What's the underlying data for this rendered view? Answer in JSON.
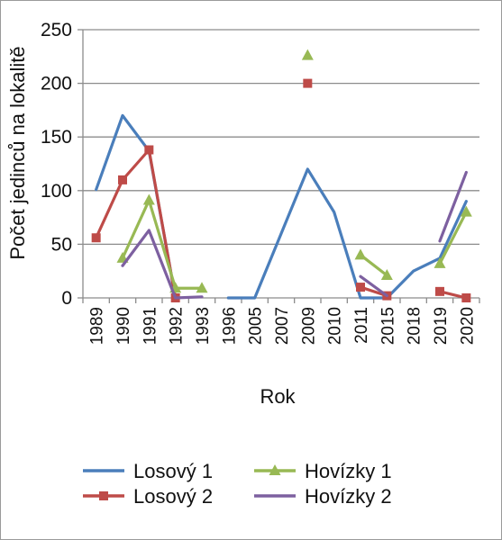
{
  "chart_data": {
    "type": "line",
    "title": "",
    "xlabel": "Rok",
    "ylabel": "Počet jedinců na lokalitě",
    "ylim": [
      0,
      250
    ],
    "yticks": [
      0,
      50,
      100,
      150,
      200,
      250
    ],
    "categories": [
      "1989",
      "1990",
      "1991",
      "1992",
      "1993",
      "1996",
      "2005",
      "2007",
      "2009",
      "2010",
      "2011",
      "2015",
      "2018",
      "2019",
      "2020"
    ],
    "grid": "horizontal",
    "legend_position": "bottom",
    "series": [
      {
        "name": "Losový 1",
        "color": "#4a7ebb",
        "marker": "none",
        "values": [
          101,
          170,
          137,
          0,
          null,
          0,
          0,
          60,
          120,
          80,
          0,
          0,
          25,
          37,
          90
        ]
      },
      {
        "name": "Losový 2",
        "color": "#be4b48",
        "marker": "square",
        "values": [
          56,
          110,
          138,
          0,
          null,
          null,
          null,
          null,
          200,
          null,
          10,
          2,
          null,
          6,
          0
        ]
      },
      {
        "name": "Hovízky 1",
        "color": "#98b954",
        "marker": "triangle",
        "values": [
          null,
          37,
          91,
          9,
          9,
          null,
          null,
          null,
          226,
          null,
          40,
          21,
          null,
          32,
          80
        ]
      },
      {
        "name": "Hovízky 2",
        "color": "#7d60a0",
        "marker": "none",
        "values": [
          null,
          30,
          63,
          0,
          1,
          null,
          null,
          null,
          null,
          null,
          20,
          2,
          null,
          53,
          117
        ]
      }
    ]
  }
}
